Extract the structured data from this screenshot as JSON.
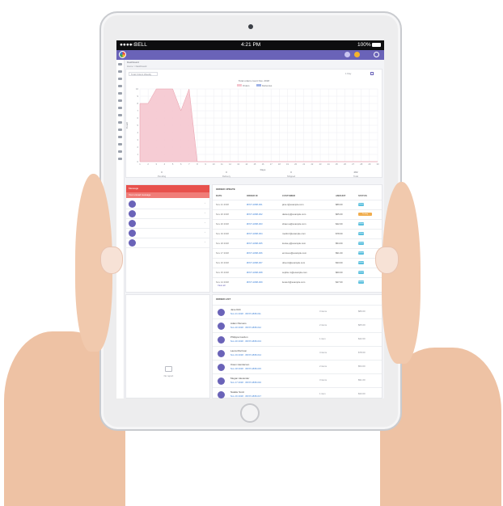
{
  "status_bar": {
    "carrier": "BELL",
    "time": "4:21 PM",
    "battery": "100%"
  },
  "breadcrumb": {
    "section": "Dashboard",
    "path": "Home > Dashboard"
  },
  "chart_filter": {
    "dropdown": "Total Orders Weekly",
    "range": "1 Day"
  },
  "chart_data": {
    "type": "area",
    "title": "Total orders count Nov. 2018",
    "legend": [
      "Orders",
      "Deliveries"
    ],
    "xlabel": "Days",
    "ylabel": "Count",
    "x": [
      1,
      2,
      3,
      4,
      5,
      6,
      7,
      8,
      9,
      10,
      11,
      12,
      13,
      14,
      15,
      16,
      17,
      18,
      19,
      20,
      21,
      22,
      23,
      24,
      25,
      26,
      27,
      28,
      29,
      30
    ],
    "series": [
      {
        "name": "Orders",
        "values": [
          8,
          8,
          10,
          10,
          10,
          7,
          10,
          0,
          0,
          0,
          0,
          0,
          0,
          0,
          0,
          0,
          0,
          0,
          0,
          0,
          0,
          0,
          0,
          0,
          0,
          0,
          0,
          0,
          0,
          0
        ]
      }
    ],
    "ylim": [
      0,
      10
    ],
    "y_ticks": [
      0,
      1,
      2,
      3,
      4,
      5,
      6,
      7,
      8,
      9,
      10
    ],
    "colors": {
      "Orders": "#f5c6cf",
      "Deliveries": "#9fb3e8"
    }
  },
  "summary": [
    {
      "value": "0",
      "label": "Pending"
    },
    {
      "value": "0",
      "label": "Delivery"
    },
    {
      "value": "0",
      "label": "Shipped"
    },
    {
      "value": "282",
      "label": "Total"
    }
  ],
  "messages": {
    "title": "Message",
    "subtitle": "Your unread message",
    "items": [
      {
        "name": "Jane Robinson",
        "text": "Please reply as soon as possible"
      },
      {
        "name": "Daniel Parsons",
        "text": "Order details attached for your review"
      },
      {
        "name": "Shaun Andrews",
        "text": "Please confirm the delivery date"
      },
      {
        "name": "Martin Ferguson",
        "text": "Payment received for the order"
      },
      {
        "name": "Louise Parker",
        "text": "Thank you for the fast delivery"
      }
    ]
  },
  "orders": {
    "title": "ORDER UPDATE",
    "columns": [
      "DATE",
      "ORDER ID",
      "CUSTOMER",
      "AMOUNT",
      "STATUS"
    ],
    "rows": [
      {
        "date": "Nov 21 2018",
        "id": "#FNT-1808-001",
        "customer": "jane.r@example.com",
        "amount": "$89.00",
        "status": "Delivered",
        "status_color": "#5bc0de"
      },
      {
        "date": "Nov 20 2018",
        "id": "#FNT-1808-002",
        "customer": "daniel.p@example.com",
        "amount": "$65.00",
        "status": "Pending",
        "status_color": "#f0ad4e"
      },
      {
        "date": "Nov 20 2018",
        "id": "#FNT-1808-003",
        "customer": "shaun.a@example.com",
        "amount": "$42.00",
        "status": "Delivered",
        "status_color": "#5bc0de"
      },
      {
        "date": "Nov 19 2018",
        "id": "#FNT-1808-004",
        "customer": "martin.f@example.com",
        "amount": "$78.00",
        "status": "Delivered",
        "status_color": "#5bc0de"
      },
      {
        "date": "Nov 18 2018",
        "id": "#FNT-1808-005",
        "customer": "louise.p@example.com",
        "amount": "$54.00",
        "status": "Delivered",
        "status_color": "#5bc0de"
      },
      {
        "date": "Nov 17 2018",
        "id": "#FNT-1808-006",
        "customer": "emma.w@example.com",
        "amount": "$91.00",
        "status": "Delivered",
        "status_color": "#5bc0de"
      },
      {
        "date": "Nov 16 2018",
        "id": "#FNT-1808-007",
        "customer": "oliver.k@example.com",
        "amount": "$33.00",
        "status": "Delivered",
        "status_color": "#5bc0de"
      },
      {
        "date": "Nov 15 2018",
        "id": "#FNT-1808-008",
        "customer": "sophie.m@example.com",
        "amount": "$60.00",
        "status": "Delivered",
        "status_color": "#5bc0de"
      },
      {
        "date": "Nov 14 2018",
        "id": "#FNT-1808-009",
        "customer": "lucas.b@example.com",
        "amount": "$47.00",
        "status": "Delivered",
        "status_color": "#5bc0de"
      }
    ],
    "view_all": "View all"
  },
  "no_report": "No report",
  "order_list": {
    "title": "ORDER LIST",
    "items": [
      {
        "name": "Jane Rob",
        "meta": "Nov 21 2018 · #FNT-1808-011",
        "qty": "3 items",
        "amount": "$89.00"
      },
      {
        "name": "Adam Parsons",
        "meta": "Nov 20 2018 · #FNT-1808-012",
        "qty": "2 items",
        "amount": "$65.00"
      },
      {
        "name": "Philippa Gordon",
        "meta": "Nov 20 2018 · #FNT-1808-013",
        "qty": "1 item",
        "amount": "$42.00"
      },
      {
        "name": "Laura Morrison",
        "meta": "Nov 19 2018 · #FNT-1808-014",
        "qty": "4 items",
        "amount": "$78.00"
      },
      {
        "name": "Owen Henderson",
        "meta": "Nov 18 2018 · #FNT-1808-015",
        "qty": "2 items",
        "amount": "$54.00"
      },
      {
        "name": "Megan Alexander",
        "meta": "Nov 17 2018 · #FNT-1808-016",
        "qty": "3 items",
        "amount": "$91.00"
      },
      {
        "name": "Natalie Scott",
        "meta": "Nov 16 2018 · #FNT-1808-017",
        "qty": "1 item",
        "amount": "$33.00"
      }
    ]
  },
  "colors": {
    "accent": "#6a63b8",
    "message_header": "#e8514c",
    "message_subheader": "#f07d78",
    "area_fill": "#f5c6cf",
    "area_stroke": "#e79aa8"
  }
}
